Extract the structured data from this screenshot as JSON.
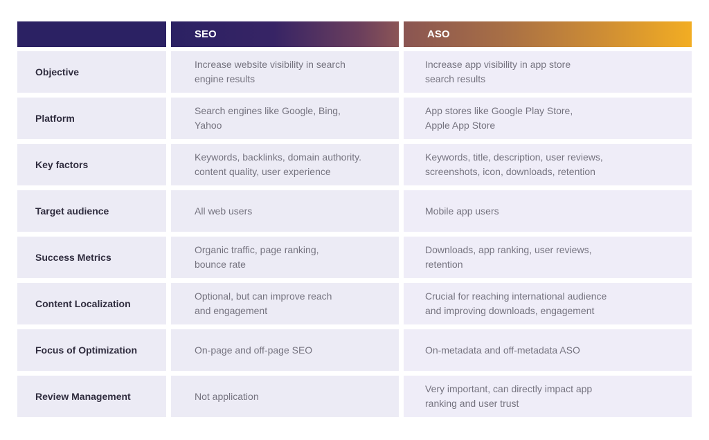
{
  "columns": {
    "seo": "SEO",
    "aso": "ASO"
  },
  "rows": [
    {
      "label": "Objective",
      "seo": "Increase website visibility in search\nengine results",
      "aso": "Increase app visibility in app store\nsearch results"
    },
    {
      "label": "Platform",
      "seo": "Search engines like Google, Bing,\nYahoo",
      "aso": "App stores like Google Play Store,\nApple App Store"
    },
    {
      "label": "Key factors",
      "seo": "Keywords, backlinks, domain authority.\ncontent quality, user experience",
      "aso": "Keywords, title, description, user reviews,\nscreenshots, icon, downloads, retention"
    },
    {
      "label": "Target audience",
      "seo": "All web users",
      "aso": "Mobile app users"
    },
    {
      "label": "Success Metrics",
      "seo": "Organic traffic, page ranking,\nbounce rate",
      "aso": "Downloads, app ranking, user reviews,\nretention"
    },
    {
      "label": "Content Localization",
      "seo": "Optional, but can improve reach\nand engagement",
      "aso": "Crucial for reaching international audience\nand improving downloads, engagement"
    },
    {
      "label": "Focus of Optimization",
      "seo": "On-page and off-page SEO",
      "aso": "On-metadata and off-metadata ASO"
    },
    {
      "label": "Review Management",
      "seo": "Not application",
      "aso": "Very important, can directly impact app\nranking and user trust"
    }
  ],
  "colors": {
    "header_dark": "#2b2163",
    "header_orange": "#f2ad23",
    "row_background": "#ecebf5",
    "label_text": "#2f2c3e",
    "cell_text": "#75737f"
  }
}
